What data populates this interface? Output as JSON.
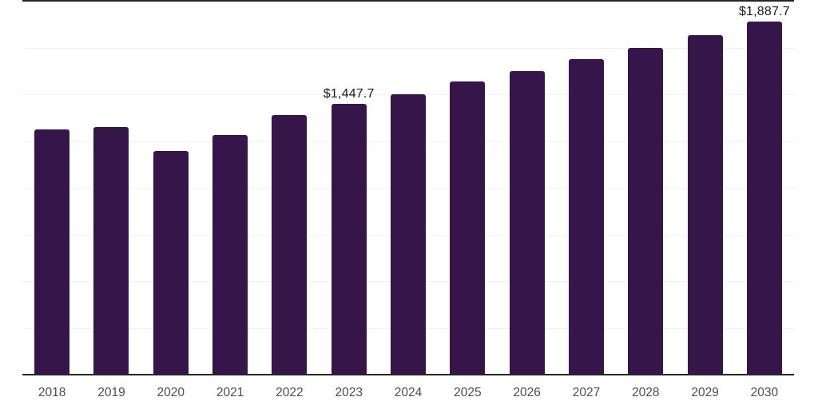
{
  "chart_data": {
    "type": "bar",
    "title": "",
    "xlabel": "",
    "ylabel": "",
    "ylim": [
      0,
      2000
    ],
    "gridline_step": 250,
    "grid": "horizontal",
    "legend_position": "none",
    "categories": [
      "2018",
      "2019",
      "2020",
      "2021",
      "2022",
      "2023",
      "2024",
      "2025",
      "2026",
      "2027",
      "2028",
      "2029",
      "2030"
    ],
    "values": [
      1312,
      1325,
      1197,
      1282,
      1389,
      1447.7,
      1500,
      1568,
      1626,
      1686,
      1748,
      1816,
      1887.7
    ],
    "value_labels": [
      "",
      "",
      "",
      "",
      "",
      "$1,447.7",
      "",
      "",
      "",
      "",
      "",
      "",
      "$1,887.7"
    ]
  },
  "colors": {
    "bar": "#36154A",
    "gridline": "#F0F0F0",
    "axis_line": "#262626",
    "top_border": "#262626",
    "value_label_text": "#1A1A1A",
    "tick_label_text": "#4D4D4D",
    "background": "#FFFFFF"
  }
}
